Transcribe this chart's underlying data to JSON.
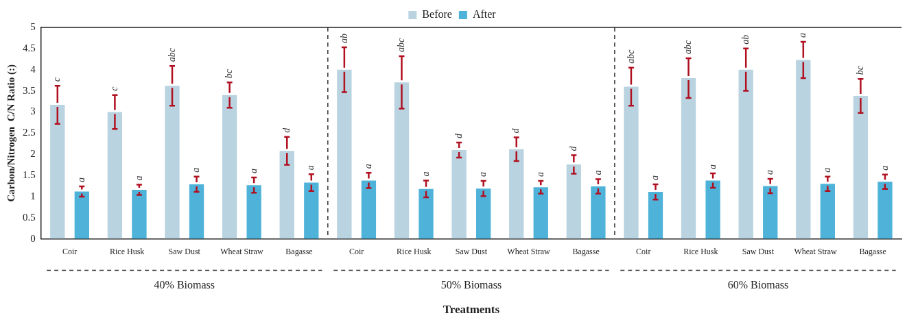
{
  "chart_data": {
    "type": "bar",
    "xlabel": "Treatments",
    "ylabel": "Carbon/Nitrogen  C/N Ratio (:)",
    "categories": [
      "Coir",
      "Rice Husk",
      "Saw Dust",
      "Wheat Straw",
      "Bagasse",
      "Coir",
      "Rice Husk",
      "Saw Dust",
      "Wheat Straw",
      "Bagasse",
      "Coir",
      "Rice Husk",
      "Saw Dust",
      "Wheat Straw",
      "Bagasse"
    ],
    "series": [
      {
        "name": "Before",
        "color": "#b9d3e0",
        "values": [
          3.17,
          3.0,
          3.62,
          3.4,
          2.08,
          4.0,
          3.7,
          2.1,
          2.12,
          1.76,
          3.6,
          3.8,
          4.0,
          4.23,
          3.38
        ],
        "errors": [
          0.45,
          0.4,
          0.47,
          0.3,
          0.33,
          0.53,
          0.62,
          0.18,
          0.28,
          0.22,
          0.45,
          0.47,
          0.5,
          0.43,
          0.4
        ],
        "value_labels": [
          "c",
          "c",
          "abc",
          "bc",
          "d",
          "ab",
          "abc",
          "d",
          "d",
          "d",
          "abc",
          "abc",
          "ab",
          "a",
          "bc"
        ]
      },
      {
        "name": "After",
        "color": "#4fb3d9",
        "values": [
          1.12,
          1.16,
          1.29,
          1.27,
          1.33,
          1.38,
          1.18,
          1.19,
          1.22,
          1.24,
          1.11,
          1.38,
          1.25,
          1.3,
          1.35
        ],
        "errors": [
          0.12,
          0.12,
          0.18,
          0.18,
          0.2,
          0.18,
          0.2,
          0.18,
          0.15,
          0.17,
          0.18,
          0.17,
          0.17,
          0.17,
          0.17
        ],
        "value_labels": [
          "a",
          "a",
          "a",
          "a",
          "a",
          "a",
          "a",
          "a",
          "a",
          "a",
          "a",
          "a",
          "a",
          "a",
          "a"
        ]
      }
    ],
    "annotations": [
      "40% Biomass",
      "50% Biomass",
      "60% Biomass"
    ],
    "ylim": [
      0,
      5
    ],
    "yticks": [
      0,
      0.5,
      1,
      1.5,
      2,
      2.5,
      3,
      3.5,
      4,
      4.5,
      5
    ],
    "grid": false,
    "legend": "top"
  }
}
